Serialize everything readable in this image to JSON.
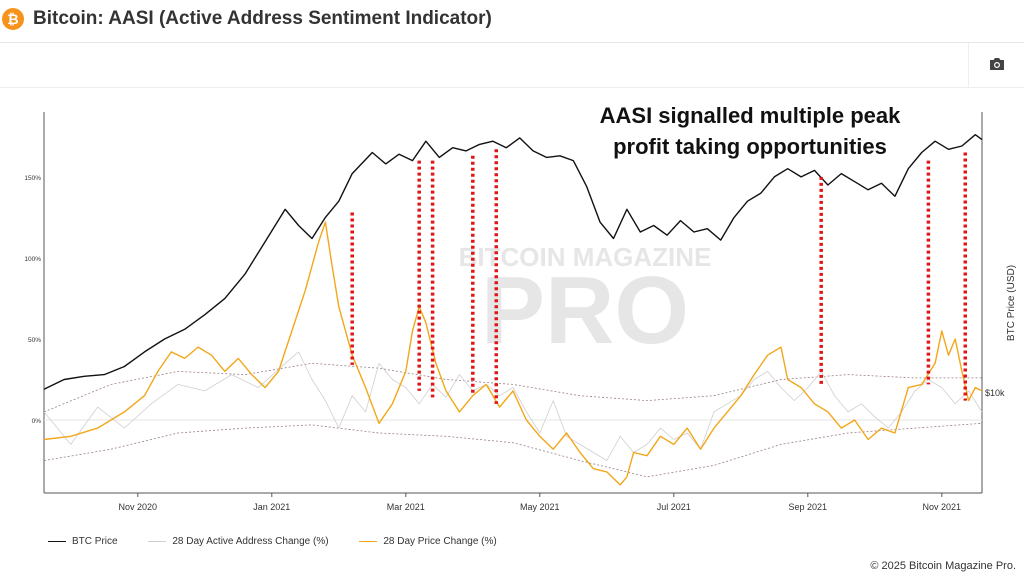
{
  "header": {
    "title": "Bitcoin: AASI (Active Address Sentiment Indicator)",
    "logo_glyph": "₿",
    "camera_icon": "camera-icon"
  },
  "footer": {
    "copyright": "© 2025 Bitcoin Magazine Pro."
  },
  "colors": {
    "btc": "#111111",
    "active": "#cfcfcf",
    "price": "#f2a71b",
    "band": "#9a7f86",
    "marker": "#e01515"
  },
  "chart_data": {
    "type": "line",
    "title": "",
    "annotation": [
      "AASI signalled multiple peak",
      "profit taking opportunities"
    ],
    "watermark": [
      "BITCOIN MAGAZINE",
      "PRO"
    ],
    "x_ticks": [
      {
        "label": "Nov 2020",
        "month": 2
      },
      {
        "label": "Jan 2021",
        "month": 4
      },
      {
        "label": "Mar 2021",
        "month": 6
      },
      {
        "label": "May 2021",
        "month": 8
      },
      {
        "label": "Jul 2021",
        "month": 10
      },
      {
        "label": "Sep 2021",
        "month": 12
      },
      {
        "label": "Nov 2021",
        "month": 14
      }
    ],
    "xlim": [
      0.6,
      14.6
    ],
    "y_left": {
      "ticks": [
        "150%",
        "100%",
        "50%",
        "0%"
      ],
      "values": [
        150,
        100,
        50,
        0
      ],
      "ylim": [
        -45,
        190
      ]
    },
    "y_right": {
      "label": "BTC Price (USD)",
      "tick_label": "$10k",
      "scale": "log"
    },
    "series": [
      {
        "name": "BTC Price",
        "points": [
          [
            0.6,
            19
          ],
          [
            0.9,
            25
          ],
          [
            1.2,
            27
          ],
          [
            1.5,
            28
          ],
          [
            1.8,
            33
          ],
          [
            2.1,
            42
          ],
          [
            2.4,
            50
          ],
          [
            2.7,
            56
          ],
          [
            3.0,
            65
          ],
          [
            3.3,
            75
          ],
          [
            3.6,
            90
          ],
          [
            3.9,
            110
          ],
          [
            4.2,
            130
          ],
          [
            4.4,
            120
          ],
          [
            4.6,
            112
          ],
          [
            4.8,
            125
          ],
          [
            5.0,
            135
          ],
          [
            5.2,
            152
          ],
          [
            5.5,
            165
          ],
          [
            5.7,
            158
          ],
          [
            5.9,
            164
          ],
          [
            6.1,
            160
          ],
          [
            6.3,
            172
          ],
          [
            6.5,
            162
          ],
          [
            6.7,
            168
          ],
          [
            6.9,
            166
          ],
          [
            7.1,
            170
          ],
          [
            7.3,
            172
          ],
          [
            7.5,
            168
          ],
          [
            7.7,
            174
          ],
          [
            7.9,
            166
          ],
          [
            8.1,
            162
          ],
          [
            8.3,
            163
          ],
          [
            8.5,
            160
          ],
          [
            8.7,
            144
          ],
          [
            8.9,
            122
          ],
          [
            9.1,
            112
          ],
          [
            9.3,
            130
          ],
          [
            9.5,
            116
          ],
          [
            9.7,
            120
          ],
          [
            9.9,
            114
          ],
          [
            10.1,
            123
          ],
          [
            10.3,
            116
          ],
          [
            10.5,
            118
          ],
          [
            10.7,
            111
          ],
          [
            10.9,
            125
          ],
          [
            11.1,
            135
          ],
          [
            11.3,
            140
          ],
          [
            11.5,
            150
          ],
          [
            11.7,
            155
          ],
          [
            11.9,
            150
          ],
          [
            12.1,
            154
          ],
          [
            12.3,
            145
          ],
          [
            12.5,
            152
          ],
          [
            12.7,
            147
          ],
          [
            12.9,
            142
          ],
          [
            13.1,
            146
          ],
          [
            13.3,
            138
          ],
          [
            13.5,
            155
          ],
          [
            13.7,
            165
          ],
          [
            13.9,
            172
          ],
          [
            14.1,
            167
          ],
          [
            14.3,
            169
          ],
          [
            14.5,
            176
          ],
          [
            14.6,
            173
          ]
        ]
      },
      {
        "name": "28 Day Active Address Change (%)",
        "points": [
          [
            0.6,
            5
          ],
          [
            1.0,
            -15
          ],
          [
            1.4,
            8
          ],
          [
            1.8,
            -5
          ],
          [
            2.2,
            10
          ],
          [
            2.6,
            22
          ],
          [
            3.0,
            18
          ],
          [
            3.4,
            28
          ],
          [
            3.8,
            20
          ],
          [
            4.2,
            35
          ],
          [
            4.4,
            42
          ],
          [
            4.6,
            25
          ],
          [
            4.8,
            12
          ],
          [
            5.0,
            -5
          ],
          [
            5.2,
            15
          ],
          [
            5.4,
            5
          ],
          [
            5.6,
            35
          ],
          [
            5.8,
            25
          ],
          [
            6.0,
            20
          ],
          [
            6.2,
            10
          ],
          [
            6.4,
            22
          ],
          [
            6.6,
            14
          ],
          [
            6.8,
            28
          ],
          [
            7.0,
            18
          ],
          [
            7.2,
            22
          ],
          [
            7.4,
            15
          ],
          [
            7.6,
            20
          ],
          [
            7.8,
            5
          ],
          [
            8.0,
            -8
          ],
          [
            8.2,
            12
          ],
          [
            8.4,
            -10
          ],
          [
            8.6,
            -15
          ],
          [
            8.8,
            -20
          ],
          [
            9.0,
            -25
          ],
          [
            9.2,
            -10
          ],
          [
            9.4,
            -20
          ],
          [
            9.6,
            -15
          ],
          [
            9.8,
            -5
          ],
          [
            10.0,
            -12
          ],
          [
            10.2,
            -8
          ],
          [
            10.4,
            -18
          ],
          [
            10.6,
            5
          ],
          [
            10.8,
            10
          ],
          [
            11.0,
            15
          ],
          [
            11.2,
            25
          ],
          [
            11.4,
            30
          ],
          [
            11.6,
            20
          ],
          [
            11.8,
            12
          ],
          [
            12.0,
            20
          ],
          [
            12.2,
            30
          ],
          [
            12.4,
            15
          ],
          [
            12.6,
            5
          ],
          [
            12.8,
            10
          ],
          [
            13.0,
            2
          ],
          [
            13.2,
            -5
          ],
          [
            13.4,
            5
          ],
          [
            13.6,
            18
          ],
          [
            13.8,
            25
          ],
          [
            14.0,
            20
          ],
          [
            14.2,
            10
          ],
          [
            14.4,
            18
          ],
          [
            14.6,
            5
          ]
        ]
      },
      {
        "name": "28 Day Price Change (%)",
        "points": [
          [
            0.6,
            -12
          ],
          [
            1.0,
            -10
          ],
          [
            1.4,
            -5
          ],
          [
            1.8,
            5
          ],
          [
            2.1,
            15
          ],
          [
            2.3,
            30
          ],
          [
            2.5,
            42
          ],
          [
            2.7,
            38
          ],
          [
            2.9,
            45
          ],
          [
            3.1,
            40
          ],
          [
            3.3,
            30
          ],
          [
            3.5,
            38
          ],
          [
            3.7,
            28
          ],
          [
            3.9,
            20
          ],
          [
            4.1,
            30
          ],
          [
            4.3,
            55
          ],
          [
            4.5,
            80
          ],
          [
            4.7,
            110
          ],
          [
            4.8,
            122
          ],
          [
            4.9,
            95
          ],
          [
            5.0,
            70
          ],
          [
            5.2,
            40
          ],
          [
            5.4,
            20
          ],
          [
            5.6,
            -2
          ],
          [
            5.8,
            10
          ],
          [
            6.0,
            30
          ],
          [
            6.1,
            55
          ],
          [
            6.2,
            70
          ],
          [
            6.3,
            60
          ],
          [
            6.45,
            35
          ],
          [
            6.6,
            18
          ],
          [
            6.8,
            5
          ],
          [
            7.0,
            15
          ],
          [
            7.2,
            22
          ],
          [
            7.4,
            8
          ],
          [
            7.6,
            18
          ],
          [
            7.8,
            0
          ],
          [
            8.0,
            -10
          ],
          [
            8.2,
            -18
          ],
          [
            8.4,
            -8
          ],
          [
            8.6,
            -20
          ],
          [
            8.8,
            -30
          ],
          [
            9.0,
            -32
          ],
          [
            9.2,
            -40
          ],
          [
            9.3,
            -35
          ],
          [
            9.4,
            -20
          ],
          [
            9.6,
            -22
          ],
          [
            9.8,
            -10
          ],
          [
            10.0,
            -15
          ],
          [
            10.2,
            -5
          ],
          [
            10.4,
            -18
          ],
          [
            10.6,
            -5
          ],
          [
            10.8,
            5
          ],
          [
            11.0,
            15
          ],
          [
            11.2,
            28
          ],
          [
            11.4,
            40
          ],
          [
            11.6,
            45
          ],
          [
            11.7,
            25
          ],
          [
            11.9,
            20
          ],
          [
            12.1,
            10
          ],
          [
            12.3,
            5
          ],
          [
            12.5,
            -5
          ],
          [
            12.7,
            0
          ],
          [
            12.9,
            -12
          ],
          [
            13.1,
            -5
          ],
          [
            13.3,
            -8
          ],
          [
            13.5,
            20
          ],
          [
            13.7,
            22
          ],
          [
            13.9,
            35
          ],
          [
            14.0,
            55
          ],
          [
            14.1,
            40
          ],
          [
            14.2,
            50
          ],
          [
            14.3,
            30
          ],
          [
            14.4,
            12
          ],
          [
            14.5,
            20
          ],
          [
            14.6,
            18
          ]
        ]
      },
      {
        "points": [
          [
            0.6,
            5
          ],
          [
            1.6,
            22
          ],
          [
            2.6,
            30
          ],
          [
            3.6,
            28
          ],
          [
            4.6,
            35
          ],
          [
            5.6,
            32
          ],
          [
            6.6,
            25
          ],
          [
            7.6,
            22
          ],
          [
            8.6,
            15
          ],
          [
            9.6,
            12
          ],
          [
            10.6,
            15
          ],
          [
            11.6,
            25
          ],
          [
            12.6,
            28
          ],
          [
            13.6,
            26
          ],
          [
            14.6,
            26
          ]
        ]
      },
      {
        "points": [
          [
            0.6,
            -25
          ],
          [
            1.6,
            -18
          ],
          [
            2.6,
            -8
          ],
          [
            3.6,
            -5
          ],
          [
            4.6,
            -3
          ],
          [
            5.6,
            -8
          ],
          [
            6.6,
            -10
          ],
          [
            7.6,
            -14
          ],
          [
            8.6,
            -25
          ],
          [
            9.6,
            -35
          ],
          [
            10.6,
            -28
          ],
          [
            11.6,
            -15
          ],
          [
            12.6,
            -8
          ],
          [
            13.6,
            -5
          ],
          [
            14.6,
            -2
          ]
        ]
      }
    ],
    "peak_markers": [
      {
        "x": 5.2,
        "top": 128,
        "bottom": 34
      },
      {
        "x": 6.2,
        "top": 160,
        "bottom": 18
      },
      {
        "x": 6.4,
        "top": 160,
        "bottom": 14
      },
      {
        "x": 7.0,
        "top": 163,
        "bottom": 16
      },
      {
        "x": 7.35,
        "top": 167,
        "bottom": 10
      },
      {
        "x": 12.2,
        "top": 150,
        "bottom": 22
      },
      {
        "x": 13.8,
        "top": 160,
        "bottom": 22
      },
      {
        "x": 14.35,
        "top": 165,
        "bottom": 12
      }
    ],
    "legend_position": "bottom-left"
  }
}
